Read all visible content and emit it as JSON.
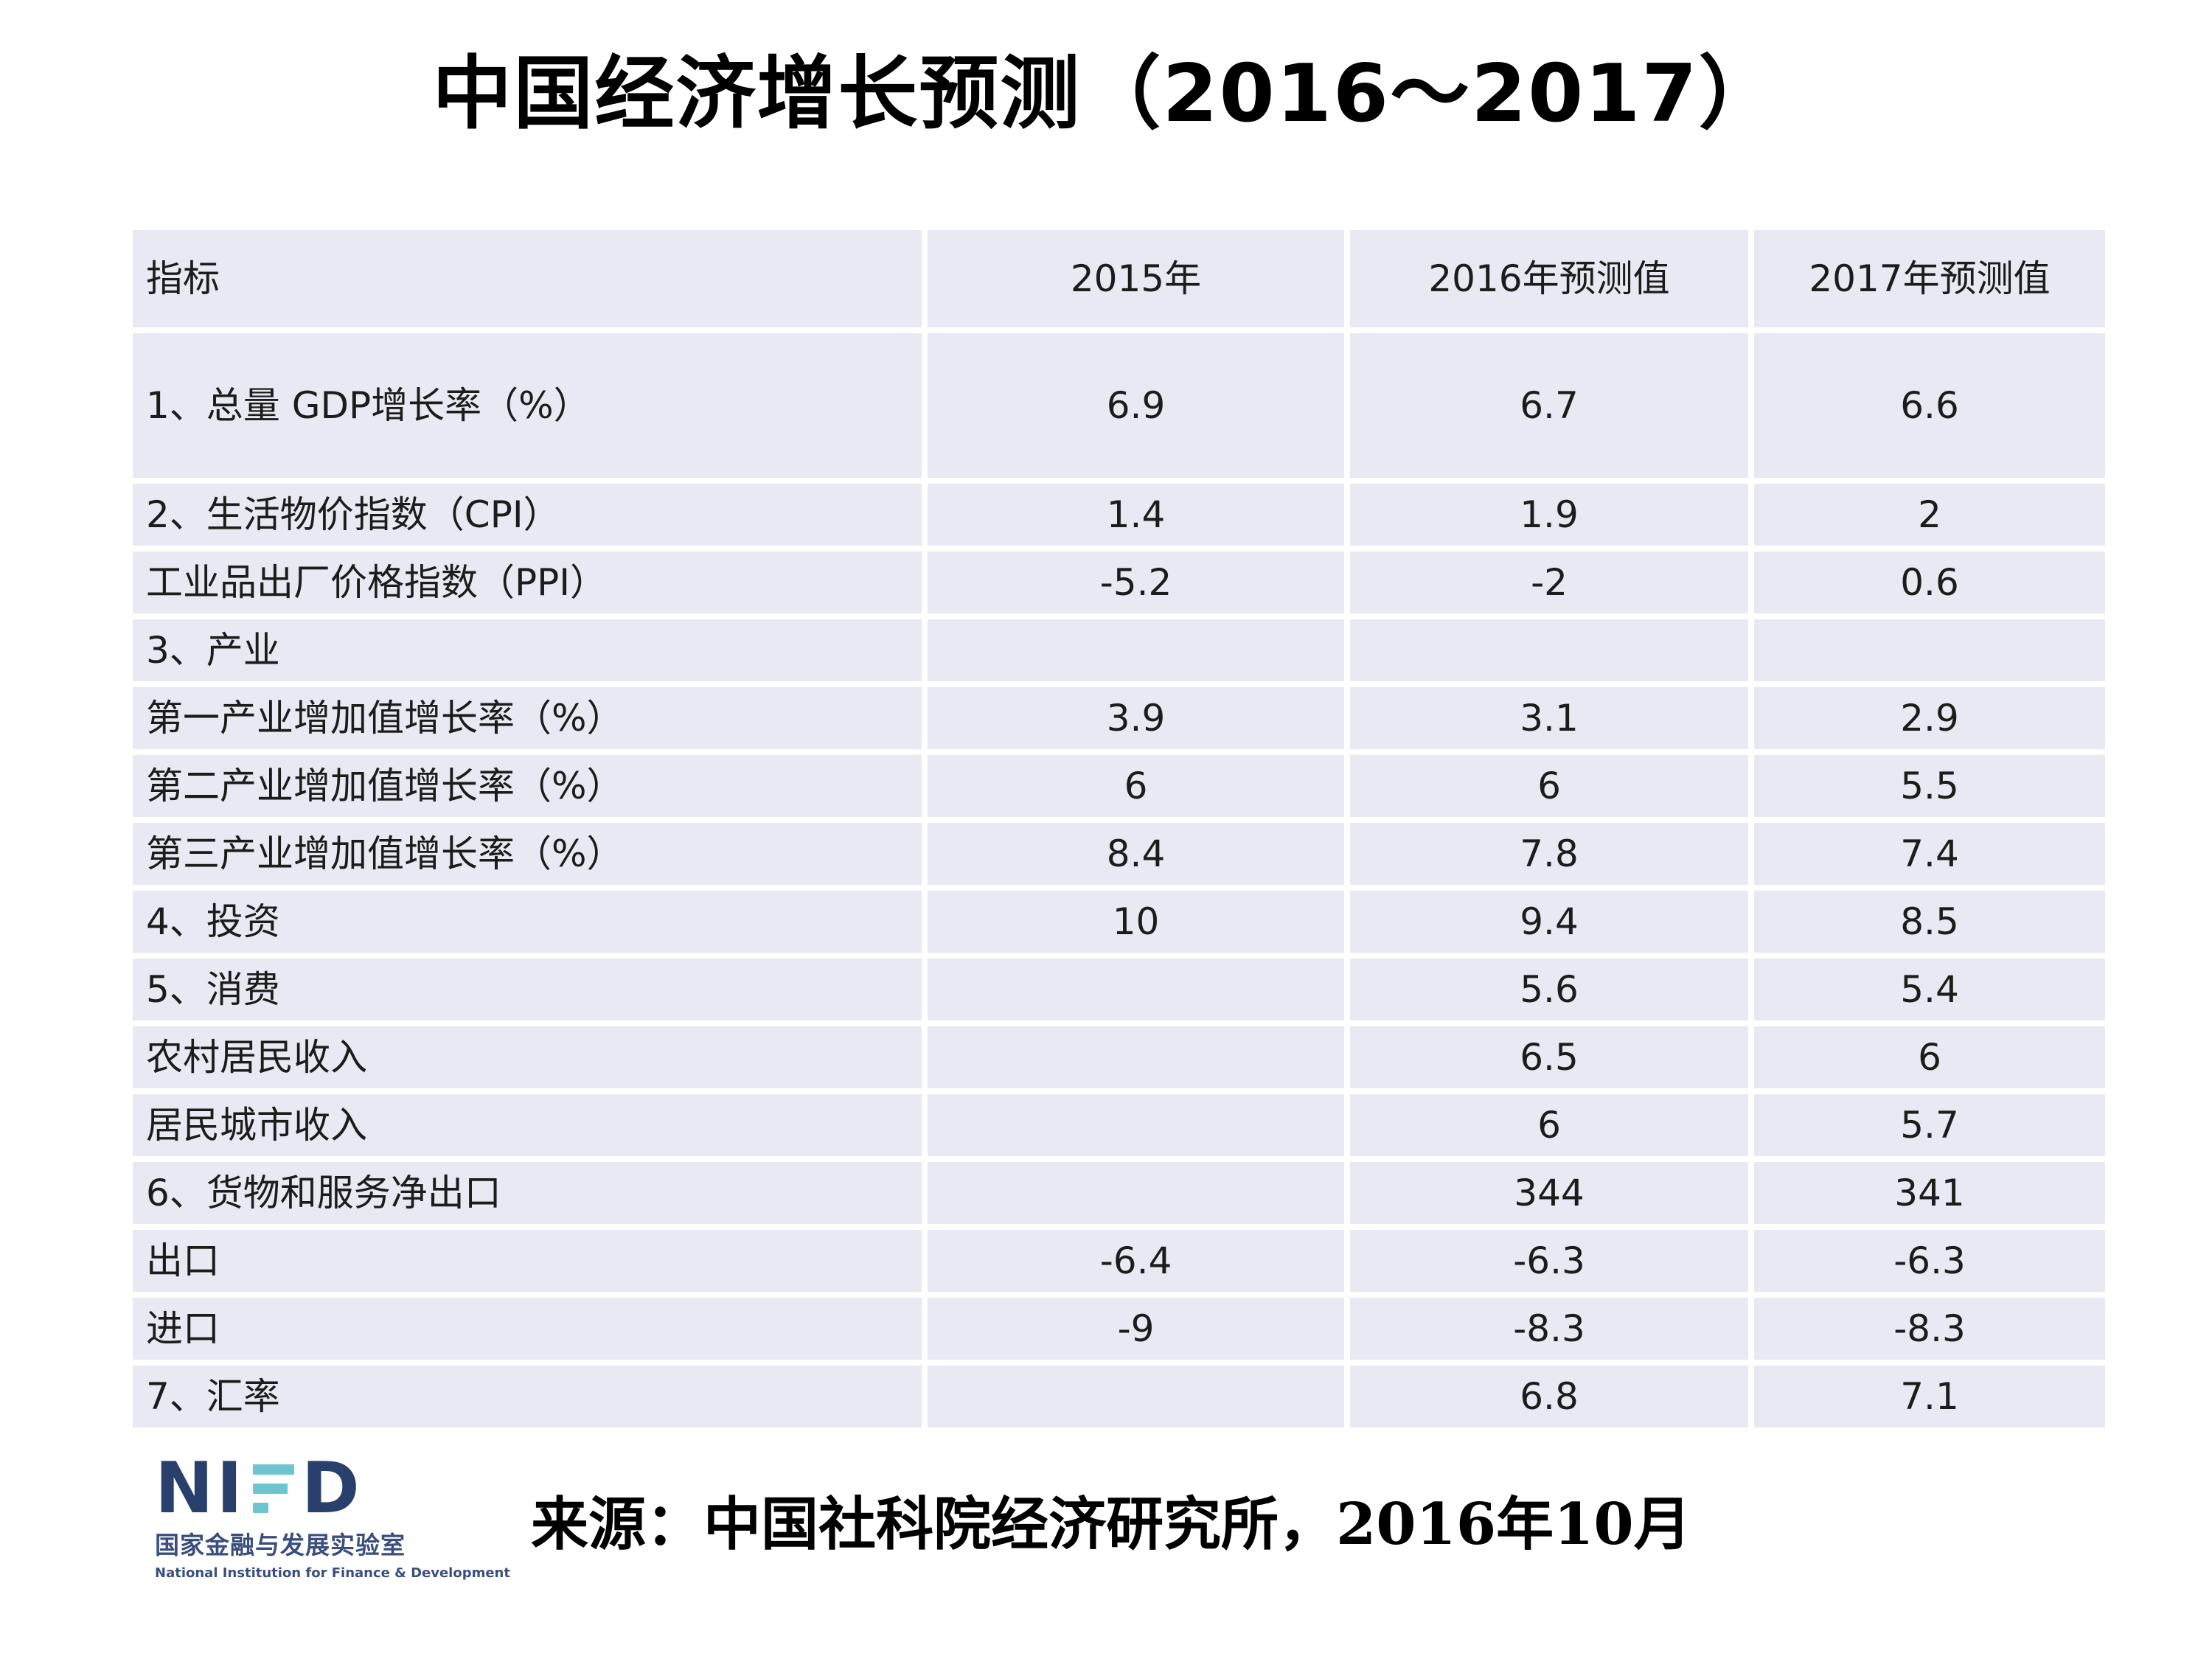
{
  "title": "中国经济增长预测（2016～2017）",
  "table": {
    "columns": [
      "指标",
      "2015年",
      "2016年预测值",
      "2017年预测值"
    ],
    "rows": [
      {
        "label": "1、总量 GDP增长率（%）",
        "v2015": "6.9",
        "v2016": "6.7",
        "v2017": "6.6"
      },
      {
        "label": "2、生活物价指数（CPI）",
        "v2015": "1.4",
        "v2016": "1.9",
        "v2017": "2"
      },
      {
        "label": "工业品出厂价格指数（PPI）",
        "v2015": "-5.2",
        "v2016": "-2",
        "v2017": "0.6"
      },
      {
        "label": "3、产业",
        "v2015": "",
        "v2016": "",
        "v2017": ""
      },
      {
        "label": "第一产业增加值增长率（%）",
        "v2015": "3.9",
        "v2016": "3.1",
        "v2017": "2.9"
      },
      {
        "label": "第二产业增加值增长率（%）",
        "v2015": "6",
        "v2016": "6",
        "v2017": "5.5"
      },
      {
        "label": "第三产业增加值增长率（%）",
        "v2015": "8.4",
        "v2016": "7.8",
        "v2017": "7.4"
      },
      {
        "label": "4、投资",
        "v2015": "10",
        "v2016": "9.4",
        "v2017": "8.5"
      },
      {
        "label": "5、消费",
        "v2015": "",
        "v2016": "5.6",
        "v2017": "5.4"
      },
      {
        "label": "农村居民收入",
        "v2015": "",
        "v2016": "6.5",
        "v2017": "6"
      },
      {
        "label": "居民城市收入",
        "v2015": "",
        "v2016": "6",
        "v2017": "5.7"
      },
      {
        "label": "6、货物和服务净出口",
        "v2015": "",
        "v2016": "344",
        "v2017": "341"
      },
      {
        "label": "出口",
        "v2015": "-6.4",
        "v2016": "-6.3",
        "v2017": "-6.3"
      },
      {
        "label": "进口",
        "v2015": "-9",
        "v2016": "-8.3",
        "v2017": "-8.3"
      },
      {
        "label": "7、汇率",
        "v2015": "",
        "v2016": "6.8",
        "v2017": "7.1"
      }
    ]
  },
  "footer": {
    "logo": {
      "ni": "NI",
      "d": "D",
      "cn": "国家金融与发展实验室",
      "en": "National Institution for Finance & Development"
    },
    "source": "来源：中国社科院经济研究所，2016年10月"
  },
  "colors": {
    "cell_background": "#e8e9f2",
    "text": "#1c1c1c",
    "logo_navy": "#28406b",
    "logo_navy_light": "#3a4f7d",
    "logo_teal": "#6fc5cf",
    "page_background": "#ffffff"
  }
}
